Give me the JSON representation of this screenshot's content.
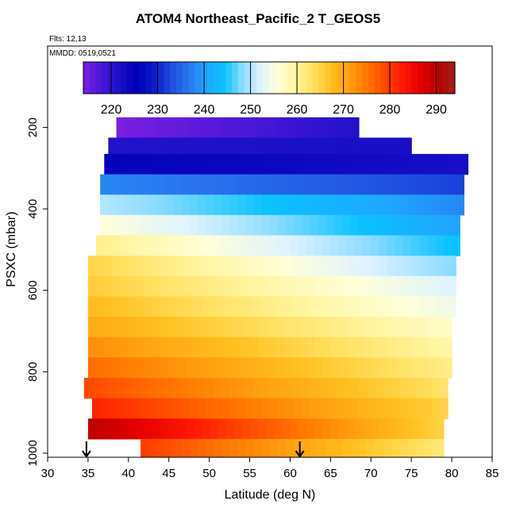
{
  "title": "ATOM4 Northeast_Pacific_2 T_GEOS5",
  "flights_note": "Flts: 12,13",
  "dates_note": "MMDD: 0519,0521",
  "colors": {
    "scale": [
      "#7b1fe0",
      "#4a17d8",
      "#1a10c8",
      "#0000b8",
      "#0a1ac8",
      "#1f4fe0",
      "#2a78f0",
      "#1fa8ff",
      "#0ac2ff",
      "#8fdcff",
      "#dff3ff",
      "#ffffd8",
      "#fff5a0",
      "#ffe060",
      "#ffc020",
      "#ffa010",
      "#ff7800",
      "#ff4a00",
      "#ff1a00",
      "#e80000",
      "#b80000",
      "#a02018"
    ],
    "colorbar_min": 214,
    "colorbar_max": 294
  },
  "chart_data": {
    "type": "heatmap",
    "title": "ATOM4 Northeast_Pacific_2 T_GEOS5",
    "xlabel": "Latitude (deg N)",
    "ylabel": "PSXC (mbar)",
    "xlim": [
      30,
      85
    ],
    "ylim": [
      1010,
      0
    ],
    "xticks": [
      30,
      35,
      40,
      45,
      50,
      55,
      60,
      65,
      70,
      75,
      80,
      85
    ],
    "yticks": [
      200,
      400,
      600,
      800,
      1000
    ],
    "colorbar": {
      "ticks": [
        220,
        230,
        240,
        250,
        260,
        270,
        280,
        290
      ]
    },
    "bands": [
      {
        "p_top": 175,
        "p_bottom": 225,
        "lat_start": 38.5,
        "lat_end": 68.5,
        "t_start": 214,
        "t_end": 221
      },
      {
        "p_top": 225,
        "p_bottom": 265,
        "lat_start": 37.5,
        "lat_end": 75.0,
        "t_start": 221,
        "t_end": 222
      },
      {
        "p_top": 265,
        "p_bottom": 315,
        "lat_start": 37.0,
        "lat_end": 82.0,
        "t_start": 225,
        "t_end": 222
      },
      {
        "p_top": 315,
        "p_bottom": 365,
        "lat_start": 36.5,
        "lat_end": 81.5,
        "t_start": 238,
        "t_end": 232
      },
      {
        "p_top": 365,
        "p_bottom": 415,
        "lat_start": 36.5,
        "lat_end": 81.5,
        "t_start": 250,
        "t_end": 238
      },
      {
        "p_top": 415,
        "p_bottom": 465,
        "lat_start": 36.5,
        "lat_end": 81.0,
        "t_start": 256,
        "t_end": 240
      },
      {
        "p_top": 465,
        "p_bottom": 515,
        "lat_start": 36.0,
        "lat_end": 81.0,
        "t_start": 261,
        "t_end": 244
      },
      {
        "p_top": 515,
        "p_bottom": 565,
        "lat_start": 35.0,
        "lat_end": 80.5,
        "t_start": 265,
        "t_end": 248
      },
      {
        "p_top": 565,
        "p_bottom": 615,
        "lat_start": 35.0,
        "lat_end": 80.5,
        "t_start": 266,
        "t_end": 252
      },
      {
        "p_top": 615,
        "p_bottom": 665,
        "lat_start": 35.0,
        "lat_end": 80.5,
        "t_start": 268,
        "t_end": 254
      },
      {
        "p_top": 665,
        "p_bottom": 715,
        "lat_start": 35.0,
        "lat_end": 80.0,
        "t_start": 270,
        "t_end": 257
      },
      {
        "p_top": 715,
        "p_bottom": 765,
        "lat_start": 35.0,
        "lat_end": 80.0,
        "t_start": 273,
        "t_end": 259
      },
      {
        "p_top": 765,
        "p_bottom": 815,
        "lat_start": 35.0,
        "lat_end": 80.0,
        "t_start": 276,
        "t_end": 261
      },
      {
        "p_top": 815,
        "p_bottom": 865,
        "lat_start": 34.5,
        "lat_end": 79.5,
        "t_start": 279,
        "t_end": 263
      },
      {
        "p_top": 865,
        "p_bottom": 915,
        "lat_start": 35.5,
        "lat_end": 79.5,
        "t_start": 282,
        "t_end": 265
      },
      {
        "p_top": 915,
        "p_bottom": 965,
        "lat_start": 35.0,
        "lat_end": 79.0,
        "t_start": 290,
        "t_end": 265
      },
      {
        "p_top": 965,
        "p_bottom": 1010,
        "lat_start": 41.5,
        "lat_end": 79.0,
        "t_start": 280,
        "t_end": 262
      }
    ],
    "markers": [
      {
        "lat": 34.8,
        "label": "↓"
      },
      {
        "lat": 61.2,
        "label": "↓"
      }
    ]
  }
}
